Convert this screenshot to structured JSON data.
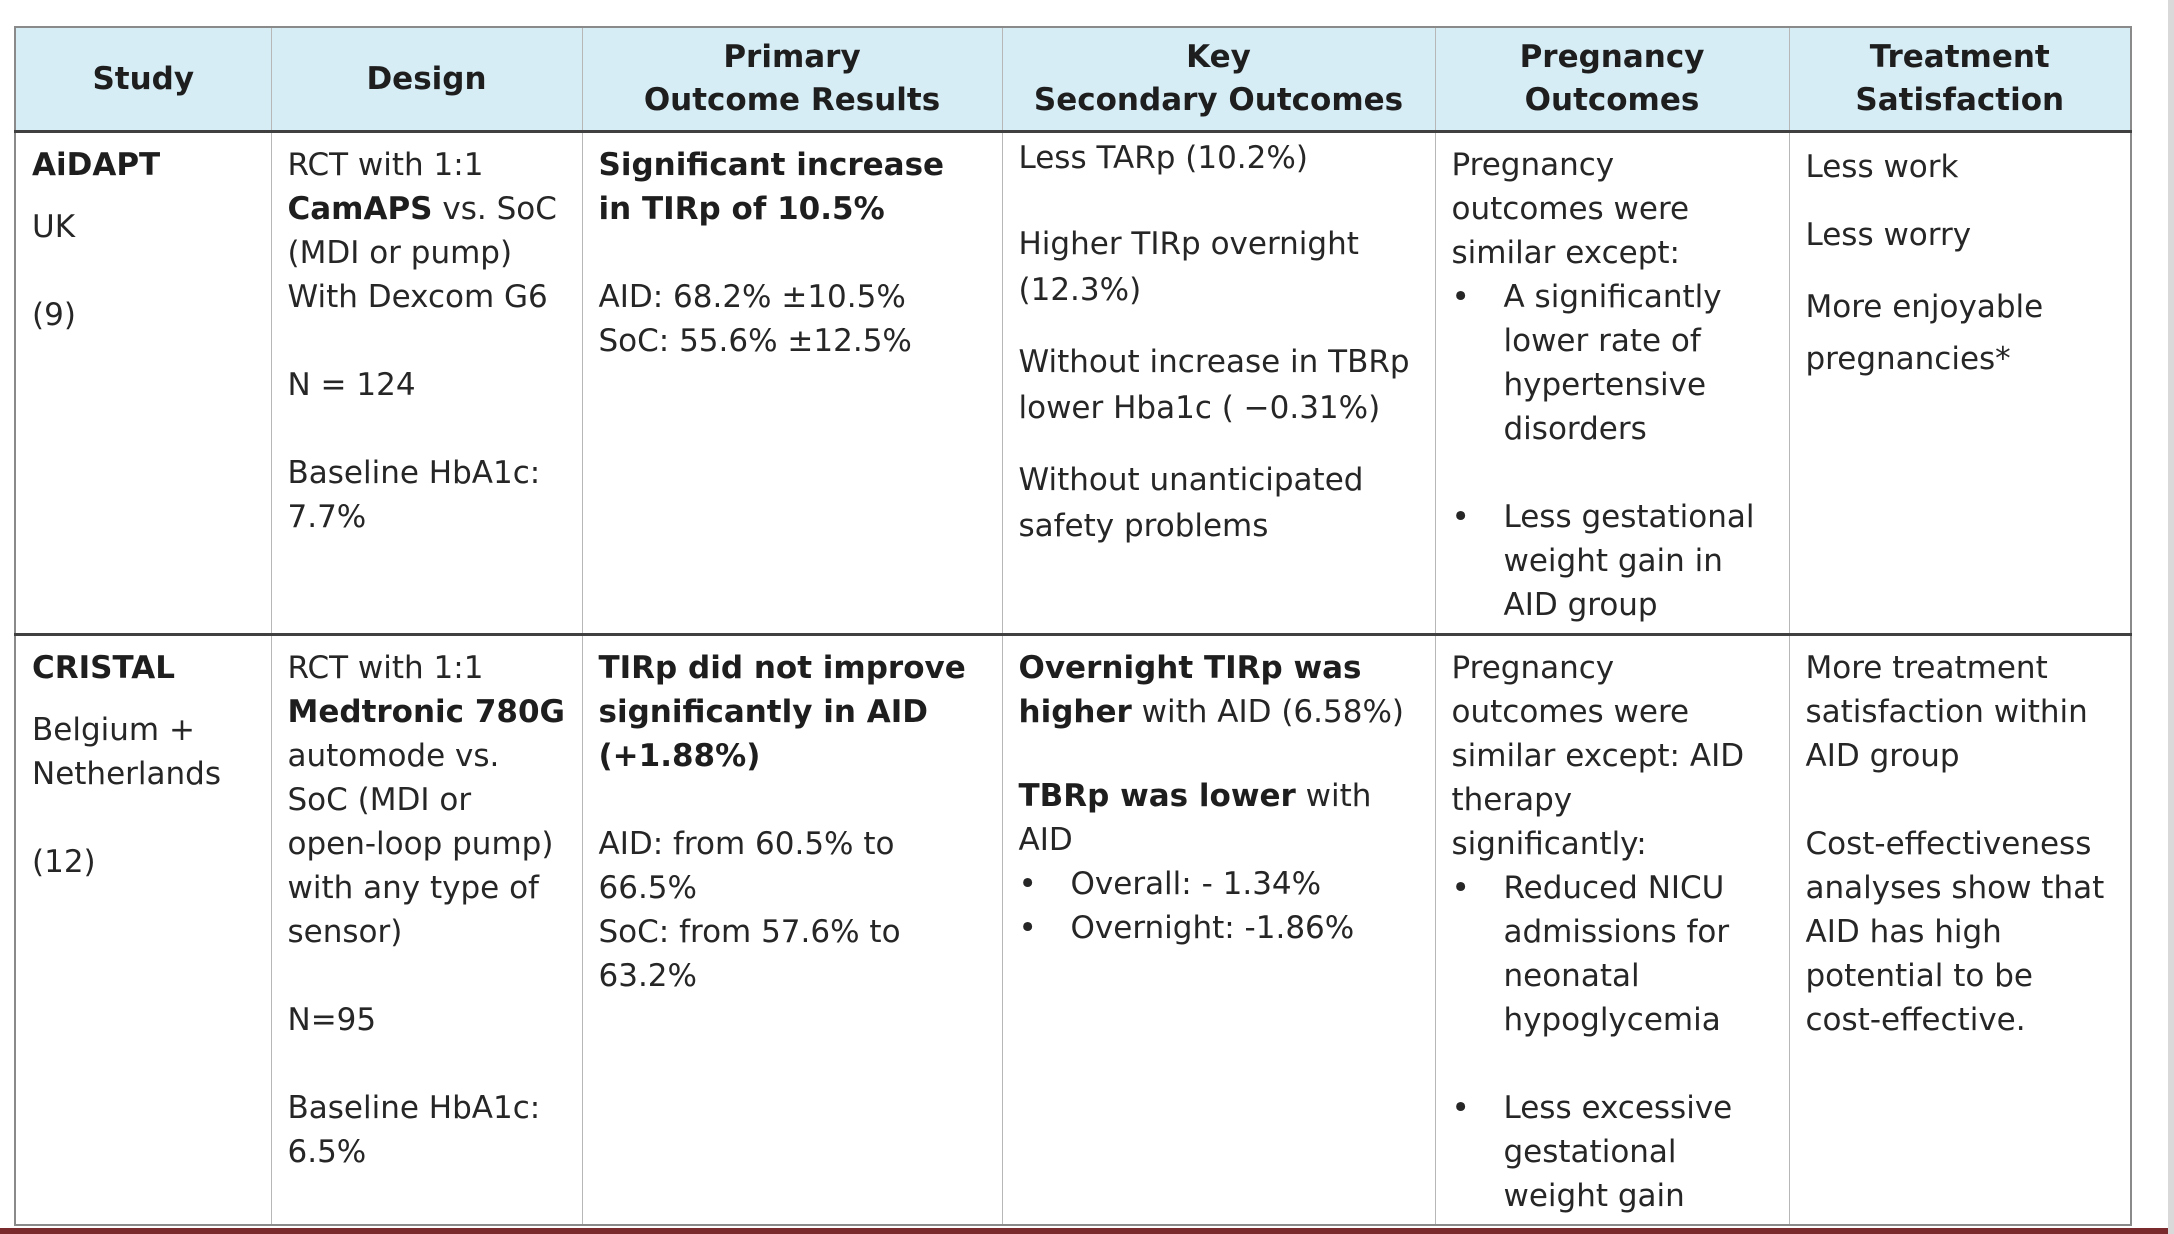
{
  "headers": {
    "study": "Study",
    "design": "Design",
    "primary_l1": "Primary",
    "primary_l2": "Outcome Results",
    "key_l1": "Key",
    "key_l2": "Secondary Outcomes",
    "pregnancy_l1": "Pregnancy",
    "pregnancy_l2": "Outcomes",
    "treatment_l1": "Treatment",
    "treatment_l2": "Satisfaction"
  },
  "rows": [
    {
      "study": {
        "name": "AiDAPT",
        "country": "UK",
        "ref": "(9)"
      },
      "design": {
        "line1": "RCT with 1:1",
        "device": "CamAPS",
        "device_suffix": " vs. SoC",
        "line3": "(MDI or pump)",
        "line4": "With Dexcom G6",
        "n": "N = 124",
        "baseline_label": "Baseline HbA1c:",
        "baseline_value": "7.7%"
      },
      "primary": {
        "headline": "Significant increase in TIRp of 10.5%",
        "aid": "AID: 68.2% ±10.5%",
        "soc": "SoC: 55.6% ±12.5%"
      },
      "secondary": {
        "s1": "Less TARp (10.2%)",
        "s2": "Higher TIRp overnight (12.3%)",
        "s3": "Without increase in TBRp lower Hba1c ( −0.31%)",
        "s4": "Without unanticipated safety problems"
      },
      "pregnancy": {
        "intro": "Pregnancy outcomes were similar except:",
        "bullets": [
          "A significantly lower rate of hypertensive disorders",
          "Less gestational weight gain in AID group"
        ]
      },
      "satisfaction": {
        "t1": "Less work",
        "t2": "Less worry",
        "t3": "More enjoyable pregnancies*"
      }
    },
    {
      "study": {
        "name": "CRISTAL",
        "country": "Belgium + Netherlands",
        "ref": "(12)"
      },
      "design": {
        "line1": "RCT with 1:1",
        "device": "Medtronic 780G",
        "line3": "automode vs. SoC (MDI or open-loop pump) with any type of sensor)",
        "n": "N=95",
        "baseline_label": "Baseline HbA1c:",
        "baseline_value": "6.5%"
      },
      "primary": {
        "headline": "TIRp did not improve significantly in AID (+1.88%)",
        "aid": "AID: from 60.5% to 66.5%",
        "soc": "SoC: from 57.6% to 63.2%"
      },
      "secondary": {
        "s1_bold": "Overnight TIRp was higher",
        "s1_rest": " with AID (6.58%)",
        "s2_bold": "TBRp was lower",
        "s2_rest": " with AID",
        "bullets": [
          "Overall: - 1.34%",
          "Overnight: -1.86%"
        ]
      },
      "pregnancy": {
        "intro": "Pregnancy outcomes were similar except: AID therapy significantly:",
        "bullets": [
          "Reduced NICU admissions for neonatal hypoglycemia",
          "Less excessive gestational weight gain"
        ]
      },
      "satisfaction": {
        "t1": "More treatment satisfaction within AID group",
        "t2": "Cost-effectiveness analyses show that AID has high potential to be cost-effective."
      }
    }
  ]
}
